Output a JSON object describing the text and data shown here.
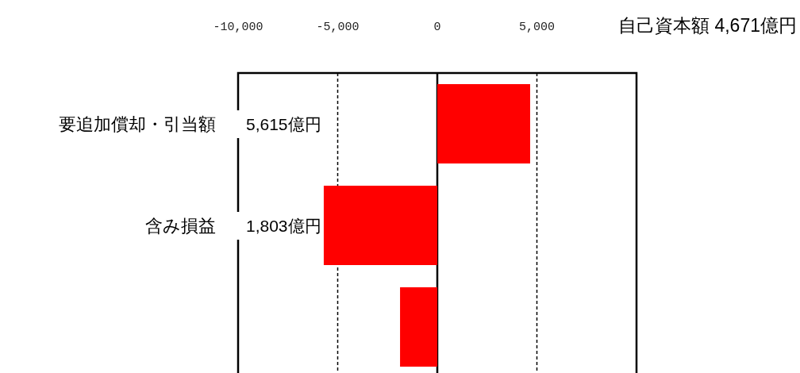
{
  "chart_data": {
    "type": "bar",
    "orientation": "horizontal",
    "xlabel": "自己資本額 4,671億円",
    "categories": [
      "要追加償却・引当額",
      "含み損益",
      null
    ],
    "series": [
      {
        "color": "#ff0000",
        "values": [
          4660,
          -5700,
          -1870
        ]
      }
    ],
    "annotations": [
      "5,615億円",
      "1,803億円"
    ],
    "xlim": [
      -10000,
      10000
    ],
    "xticks": [
      {
        "value": -10000,
        "label": "-10,000"
      },
      {
        "value": -5000,
        "label": "-5,000"
      },
      0,
      {
        "value": 5000,
        "label": "5,000"
      },
      {
        "value": 10000,
        "label": null
      }
    ],
    "grid": "x"
  }
}
